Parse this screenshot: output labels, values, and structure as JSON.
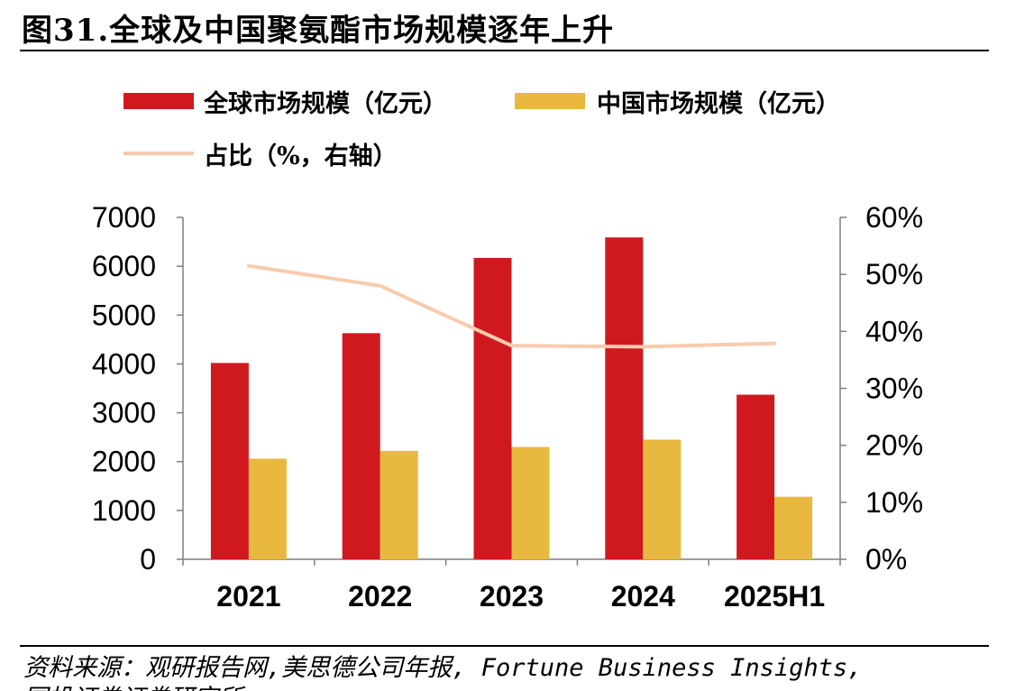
{
  "figure": {
    "title": "图31.全球及中国聚氨酯市场规模逐年上升",
    "source_line1": "资料来源：观研报告网,美思德公司年报, Fortune Business Insights,",
    "source_line2": "国投证券证券研究所"
  },
  "chart_data": {
    "type": "bar",
    "categories": [
      "2021",
      "2022",
      "2023",
      "2024",
      "2025H1"
    ],
    "series": [
      {
        "name": "全球市场规模（亿元）",
        "type": "bar",
        "axis": "left",
        "color": "#D0181F",
        "values": [
          4020,
          4630,
          6170,
          6590,
          3370
        ]
      },
      {
        "name": "中国市场规模（亿元）",
        "type": "bar",
        "axis": "left",
        "color": "#E8B93E",
        "values": [
          2060,
          2220,
          2300,
          2450,
          1280
        ]
      },
      {
        "name": "占比（%，右轴）",
        "type": "line",
        "axis": "right",
        "color": "#F8CBAD",
        "values": [
          51.5,
          48.0,
          37.5,
          37.3,
          37.9
        ]
      }
    ],
    "y_left": {
      "range": [
        0,
        7000
      ],
      "ticks": [
        0,
        1000,
        2000,
        3000,
        4000,
        5000,
        6000,
        7000
      ]
    },
    "y_right": {
      "range": [
        0,
        60
      ],
      "ticks": [
        "0%",
        "10%",
        "20%",
        "30%",
        "40%",
        "50%",
        "60%"
      ]
    },
    "grid": false,
    "legend_position": "top-left"
  }
}
